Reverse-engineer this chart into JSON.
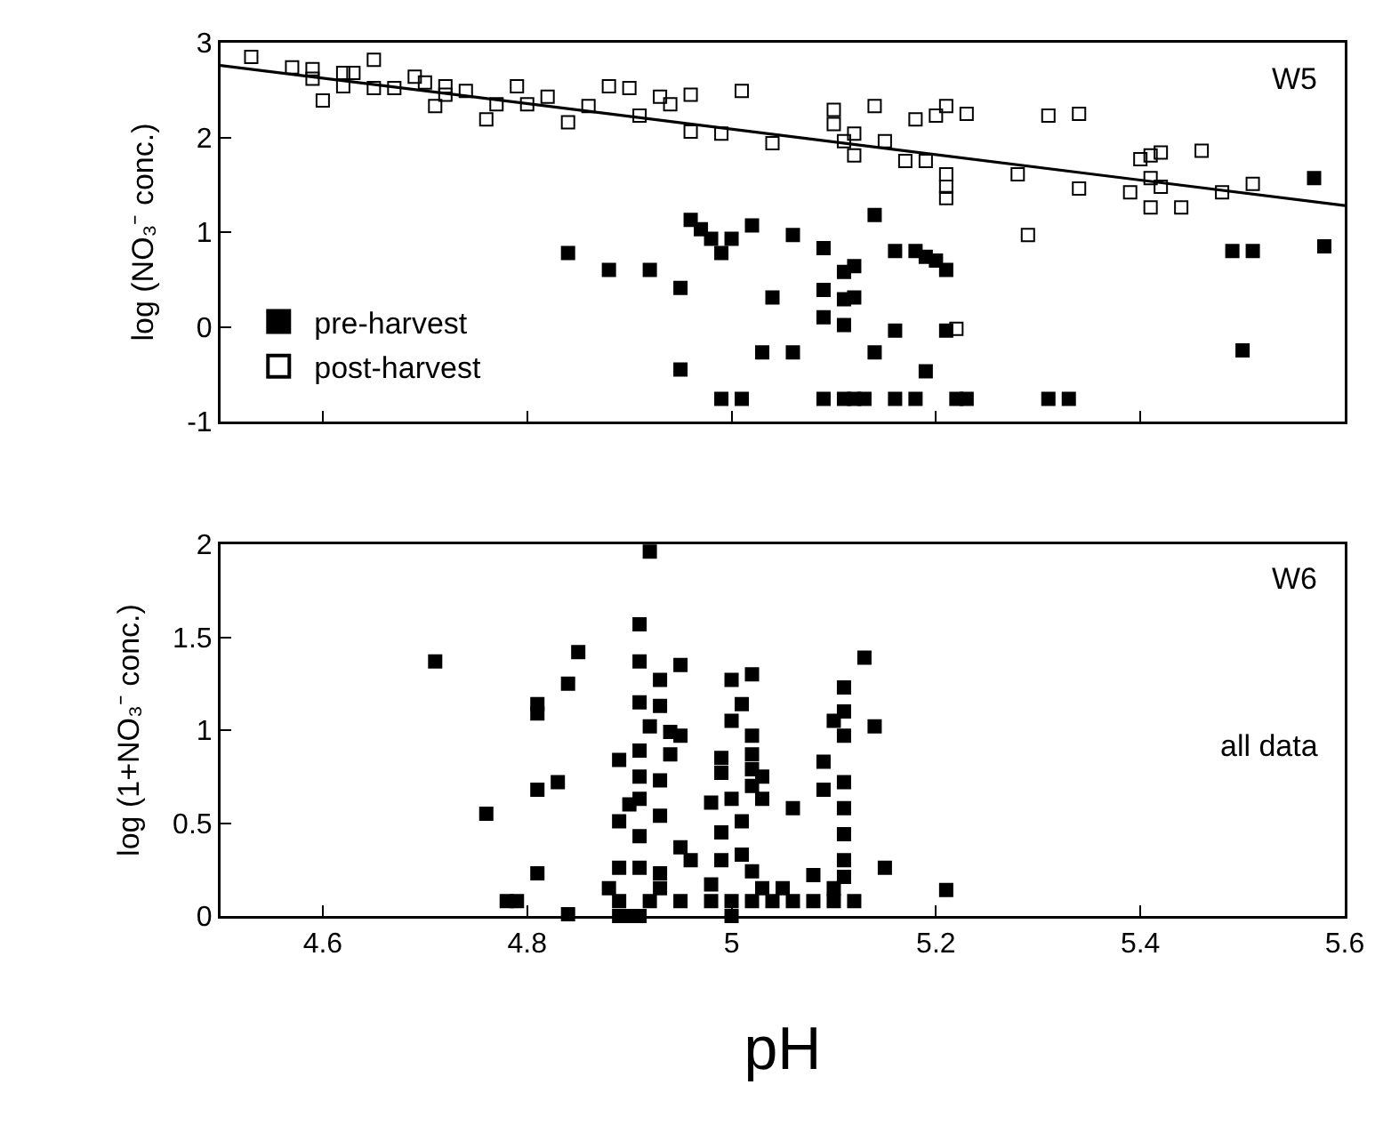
{
  "chart_data": [
    {
      "type": "scatter",
      "ylabel": "log (NO₃⁻ conc.)",
      "xlim": [
        4.5,
        5.6
      ],
      "xticks": [
        4.6,
        4.8,
        5,
        5.2,
        5.4,
        5.6
      ],
      "ylim": [
        -1,
        3
      ],
      "yticks": [
        -1,
        0,
        1,
        2,
        3
      ],
      "tick_labels": "y",
      "grid": false,
      "legend": "bottom left",
      "marker": "square",
      "annotations": [
        "W5"
      ],
      "series": [
        {
          "name": "pre-harvest",
          "color": "#000000",
          "x": [
            4.84,
            4.88,
            4.92,
            4.95,
            4.95,
            4.96,
            4.97,
            4.98,
            4.99,
            5.0,
            5.02,
            5.04,
            5.03,
            4.99,
            5.01,
            5.06,
            5.06,
            5.09,
            5.09,
            5.09,
            5.11,
            5.12,
            5.11,
            5.11,
            5.12,
            5.14,
            5.14,
            5.16,
            5.18,
            5.19,
            5.2,
            5.21,
            5.16,
            5.21,
            5.19,
            5.09,
            5.11,
            5.12,
            5.13,
            5.16,
            5.18,
            5.22,
            5.23,
            5.31,
            5.33,
            5.49,
            5.51,
            5.58,
            5.57,
            5.5
          ],
          "values": [
            0.78,
            0.6,
            0.6,
            0.41,
            -0.45,
            1.13,
            1.03,
            0.93,
            0.78,
            0.93,
            1.07,
            0.31,
            -0.27,
            -0.76,
            -0.76,
            0.97,
            -0.27,
            0.83,
            0.39,
            0.1,
            0.58,
            0.64,
            0.29,
            0.02,
            0.31,
            1.18,
            -0.27,
            0.8,
            0.8,
            0.74,
            0.7,
            0.6,
            -0.04,
            -0.04,
            -0.47,
            -0.76,
            -0.76,
            -0.76,
            -0.76,
            -0.76,
            -0.76,
            -0.76,
            -0.76,
            -0.76,
            -0.76,
            0.8,
            0.8,
            0.85,
            1.57,
            -0.25
          ]
        },
        {
          "name": "post-harvest",
          "color": "#000000",
          "marker": "square-open",
          "x": [
            4.53,
            4.57,
            4.59,
            4.59,
            4.62,
            4.62,
            4.6,
            4.63,
            4.65,
            4.65,
            4.67,
            4.69,
            4.7,
            4.71,
            4.72,
            4.72,
            4.74,
            4.76,
            4.77,
            4.79,
            4.8,
            4.82,
            4.84,
            4.86,
            4.88,
            4.9,
            4.91,
            4.93,
            4.94,
            4.96,
            4.96,
            4.99,
            5.01,
            5.04,
            5.1,
            5.1,
            5.14,
            5.11,
            5.12,
            5.12,
            5.15,
            5.17,
            5.19,
            5.18,
            5.2,
            5.21,
            5.23,
            5.21,
            5.21,
            5.21,
            5.28,
            5.29,
            5.31,
            5.34,
            5.34,
            5.39,
            5.4,
            5.41,
            5.42,
            5.41,
            5.42,
            5.41,
            5.44,
            5.46,
            5.48,
            5.51,
            5.22
          ],
          "values": [
            2.85,
            2.74,
            2.72,
            2.62,
            2.68,
            2.54,
            2.39,
            2.68,
            2.82,
            2.52,
            2.52,
            2.64,
            2.58,
            2.33,
            2.54,
            2.45,
            2.49,
            2.19,
            2.35,
            2.54,
            2.35,
            2.43,
            2.16,
            2.33,
            2.54,
            2.52,
            2.23,
            2.43,
            2.35,
            2.45,
            2.06,
            2.04,
            2.49,
            1.94,
            2.29,
            2.14,
            2.33,
            1.96,
            2.04,
            1.81,
            1.96,
            1.75,
            1.75,
            2.19,
            2.23,
            2.33,
            2.25,
            1.61,
            1.48,
            1.36,
            1.61,
            0.97,
            2.23,
            2.25,
            1.46,
            1.42,
            1.77,
            1.81,
            1.84,
            1.57,
            1.48,
            1.26,
            1.26,
            1.86,
            1.42,
            1.51,
            -0.02
          ]
        },
        {
          "type": "line",
          "color": "#000000",
          "marker": "none",
          "x": [
            4.5,
            5.6
          ],
          "values": [
            2.76,
            1.28
          ]
        }
      ]
    },
    {
      "type": "scatter",
      "xlabel": "pH",
      "ylabel": "log (1+NO₃⁻ conc.)",
      "xlim": [
        4.5,
        5.6
      ],
      "xticks": [
        4.6,
        4.8,
        5,
        5.2,
        5.4,
        5.6
      ],
      "ylim": [
        0,
        2
      ],
      "yticks": [
        0,
        0.5,
        1,
        1.5,
        2
      ],
      "grid": false,
      "marker": "square",
      "annotations": [
        "W6",
        "all data"
      ],
      "series": [
        {
          "color": "#000000",
          "x": [
            4.92,
            4.71,
            4.76,
            4.81,
            4.81,
            4.81,
            4.83,
            4.84,
            4.85,
            4.81,
            4.89,
            4.89,
            4.89,
            4.91,
            4.91,
            4.91,
            4.91,
            4.91,
            4.91,
            4.91,
            4.91,
            4.9,
            4.93,
            4.93,
            4.92,
            4.95,
            4.94,
            4.95,
            4.94,
            4.93,
            4.93,
            4.95,
            4.96,
            4.93,
            5.0,
            5.02,
            5.01,
            5.0,
            5.02,
            4.99,
            4.99,
            5.02,
            5.02,
            5.03,
            5.02,
            4.98,
            5.0,
            5.01,
            4.99,
            4.99,
            5.01,
            5.02,
            4.98,
            5.13,
            5.11,
            5.11,
            5.1,
            5.11,
            5.14,
            5.09,
            5.09,
            5.11,
            5.11,
            5.11,
            5.11,
            5.11,
            5.15,
            5.03,
            5.06,
            5.08,
            5.21,
            4.78,
            4.79,
            4.89,
            4.92,
            4.95,
            4.98,
            5.0,
            5.02,
            5.04,
            5.06,
            5.08,
            5.1,
            5.12,
            4.84,
            4.89,
            4.9,
            4.91,
            5.0,
            4.88,
            4.93,
            5.03,
            5.05,
            5.1
          ],
          "values": [
            1.96,
            1.37,
            0.55,
            1.14,
            1.09,
            0.68,
            0.72,
            1.25,
            1.42,
            0.23,
            0.84,
            0.51,
            0.26,
            1.57,
            1.37,
            1.15,
            0.89,
            0.75,
            0.63,
            0.43,
            0.26,
            0.6,
            1.27,
            1.13,
            1.02,
            1.35,
            0.99,
            0.97,
            0.87,
            0.73,
            0.54,
            0.37,
            0.3,
            0.23,
            1.27,
            1.3,
            1.14,
            1.05,
            0.97,
            0.85,
            0.77,
            0.87,
            0.79,
            0.75,
            0.7,
            0.61,
            0.63,
            0.51,
            0.45,
            0.3,
            0.33,
            0.24,
            0.17,
            1.39,
            1.23,
            1.1,
            1.05,
            0.97,
            1.02,
            0.83,
            0.68,
            0.72,
            0.58,
            0.44,
            0.3,
            0.21,
            0.26,
            0.63,
            0.58,
            0.22,
            0.14,
            0.08,
            0.08,
            0.08,
            0.08,
            0.08,
            0.08,
            0.08,
            0.08,
            0.08,
            0.08,
            0.08,
            0.08,
            0.08,
            0.01,
            0,
            0,
            0,
            0,
            0.15,
            0.15,
            0.15,
            0.15,
            0.15
          ]
        }
      ]
    }
  ]
}
